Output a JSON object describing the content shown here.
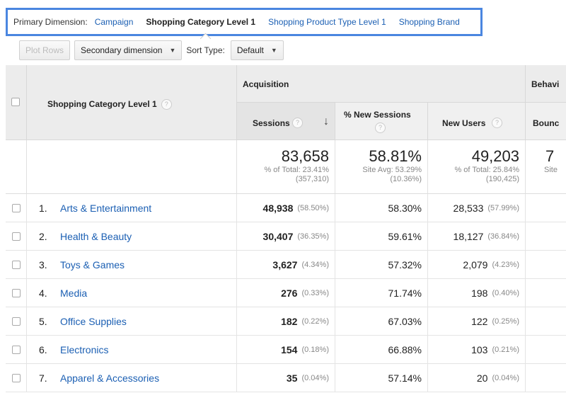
{
  "dimension_bar": {
    "label": "Primary Dimension:",
    "options": [
      "Campaign",
      "Shopping Category Level 1",
      "Shopping Product Type Level 1",
      "Shopping Brand"
    ],
    "active_index": 1
  },
  "toolbar": {
    "plot_rows": "Plot Rows",
    "secondary_dimension": "Secondary dimension",
    "sort_type_label": "Sort Type:",
    "sort_type_value": "Default"
  },
  "table": {
    "dimension_header": "Shopping Category Level 1",
    "group_acquisition": "Acquisition",
    "group_behavior": "Behavi",
    "columns": {
      "sessions": "Sessions",
      "new_sessions": "% New Sessions",
      "new_users": "New Users",
      "bounce": "Bounc"
    },
    "sort_arrow": "↓",
    "totals": {
      "sessions": {
        "big": "83,658",
        "line1": "% of Total: 23.41%",
        "line2": "(357,310)"
      },
      "new_sessions": {
        "big": "58.81%",
        "line1": "Site Avg: 53.29%",
        "line2": "(10.36%)"
      },
      "new_users": {
        "big": "49,203",
        "line1": "% of Total: 25.84%",
        "line2": "(190,425)"
      },
      "bounce": {
        "big": "7",
        "line1": "Site",
        "line2": ""
      }
    },
    "rows": [
      {
        "idx": "1.",
        "name": "Arts & Entertainment",
        "sessions": "48,938",
        "sessions_pct": "(58.50%)",
        "new_sessions": "58.30%",
        "new_users": "28,533",
        "new_users_pct": "(57.99%)"
      },
      {
        "idx": "2.",
        "name": "Health & Beauty",
        "sessions": "30,407",
        "sessions_pct": "(36.35%)",
        "new_sessions": "59.61%",
        "new_users": "18,127",
        "new_users_pct": "(36.84%)"
      },
      {
        "idx": "3.",
        "name": "Toys & Games",
        "sessions": "3,627",
        "sessions_pct": "(4.34%)",
        "new_sessions": "57.32%",
        "new_users": "2,079",
        "new_users_pct": "(4.23%)"
      },
      {
        "idx": "4.",
        "name": "Media",
        "sessions": "276",
        "sessions_pct": "(0.33%)",
        "new_sessions": "71.74%",
        "new_users": "198",
        "new_users_pct": "(0.40%)"
      },
      {
        "idx": "5.",
        "name": "Office Supplies",
        "sessions": "182",
        "sessions_pct": "(0.22%)",
        "new_sessions": "67.03%",
        "new_users": "122",
        "new_users_pct": "(0.25%)"
      },
      {
        "idx": "6.",
        "name": "Electronics",
        "sessions": "154",
        "sessions_pct": "(0.18%)",
        "new_sessions": "66.88%",
        "new_users": "103",
        "new_users_pct": "(0.21%)"
      },
      {
        "idx": "7.",
        "name": "Apparel & Accessories",
        "sessions": "35",
        "sessions_pct": "(0.04%)",
        "new_sessions": "57.14%",
        "new_users": "20",
        "new_users_pct": "(0.04%)"
      }
    ]
  },
  "colors": {
    "link": "#1b5fb3",
    "highlight_border": "#4a86e0"
  }
}
